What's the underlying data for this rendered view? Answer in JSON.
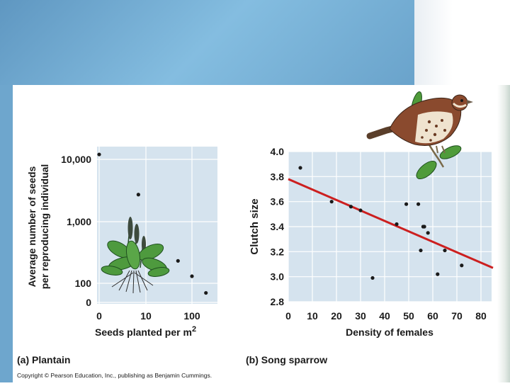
{
  "chart_data": [
    {
      "type": "scatter",
      "panel_label": "(a) Plantain",
      "xlabel": "Seeds planted per m",
      "xlabel_superscript": "2",
      "ylabel_line1": "Average number of seeds",
      "ylabel_line2": "per reproducing individual",
      "x_scale": "log",
      "y_scale": "log",
      "x_ticks": [
        "0",
        "10",
        "100"
      ],
      "y_ticks": [
        "10,000",
        "1,000",
        "100",
        "0"
      ],
      "points": [
        {
          "x": 1,
          "y": 12000
        },
        {
          "x": 7,
          "y": 2700
        },
        {
          "x": 50,
          "y": 230
        },
        {
          "x": 100,
          "y": 130
        },
        {
          "x": 200,
          "y": 70
        }
      ],
      "grid": true
    },
    {
      "type": "scatter",
      "panel_label": "(b) Song sparrow",
      "xlabel": "Density of females",
      "ylabel": "Clutch size",
      "xlim": [
        0,
        85
      ],
      "ylim": [
        2.8,
        4.0
      ],
      "x_ticks": [
        "0",
        "10",
        "20",
        "30",
        "40",
        "50",
        "60",
        "70",
        "80"
      ],
      "y_ticks": [
        "4.0",
        "3.8",
        "3.6",
        "3.4",
        "3.2",
        "3.0",
        "2.8"
      ],
      "points": [
        {
          "x": 5,
          "y": 3.87
        },
        {
          "x": 18,
          "y": 3.6
        },
        {
          "x": 26,
          "y": 3.56
        },
        {
          "x": 30,
          "y": 3.53
        },
        {
          "x": 35,
          "y": 2.99
        },
        {
          "x": 45,
          "y": 3.42
        },
        {
          "x": 49,
          "y": 3.58
        },
        {
          "x": 54,
          "y": 3.58
        },
        {
          "x": 55,
          "y": 3.21
        },
        {
          "x": 56,
          "y": 3.4
        },
        {
          "x": 56.5,
          "y": 3.4
        },
        {
          "x": 58,
          "y": 3.35
        },
        {
          "x": 62,
          "y": 3.02
        },
        {
          "x": 65,
          "y": 3.21
        },
        {
          "x": 72,
          "y": 3.09
        }
      ],
      "trend_line": {
        "x1": 0,
        "y1": 3.78,
        "x2": 85,
        "y2": 3.07,
        "color": "#cc1f1f"
      },
      "grid": true
    }
  ],
  "copyright": "Copyright © Pearson Education, Inc., publishing as Benjamin Cummings.",
  "colors": {
    "plot_bg": "#d5e3ee",
    "grid": "#ffffff",
    "point": "#1a1a1a",
    "slide_blue": "#6ea6cd"
  }
}
